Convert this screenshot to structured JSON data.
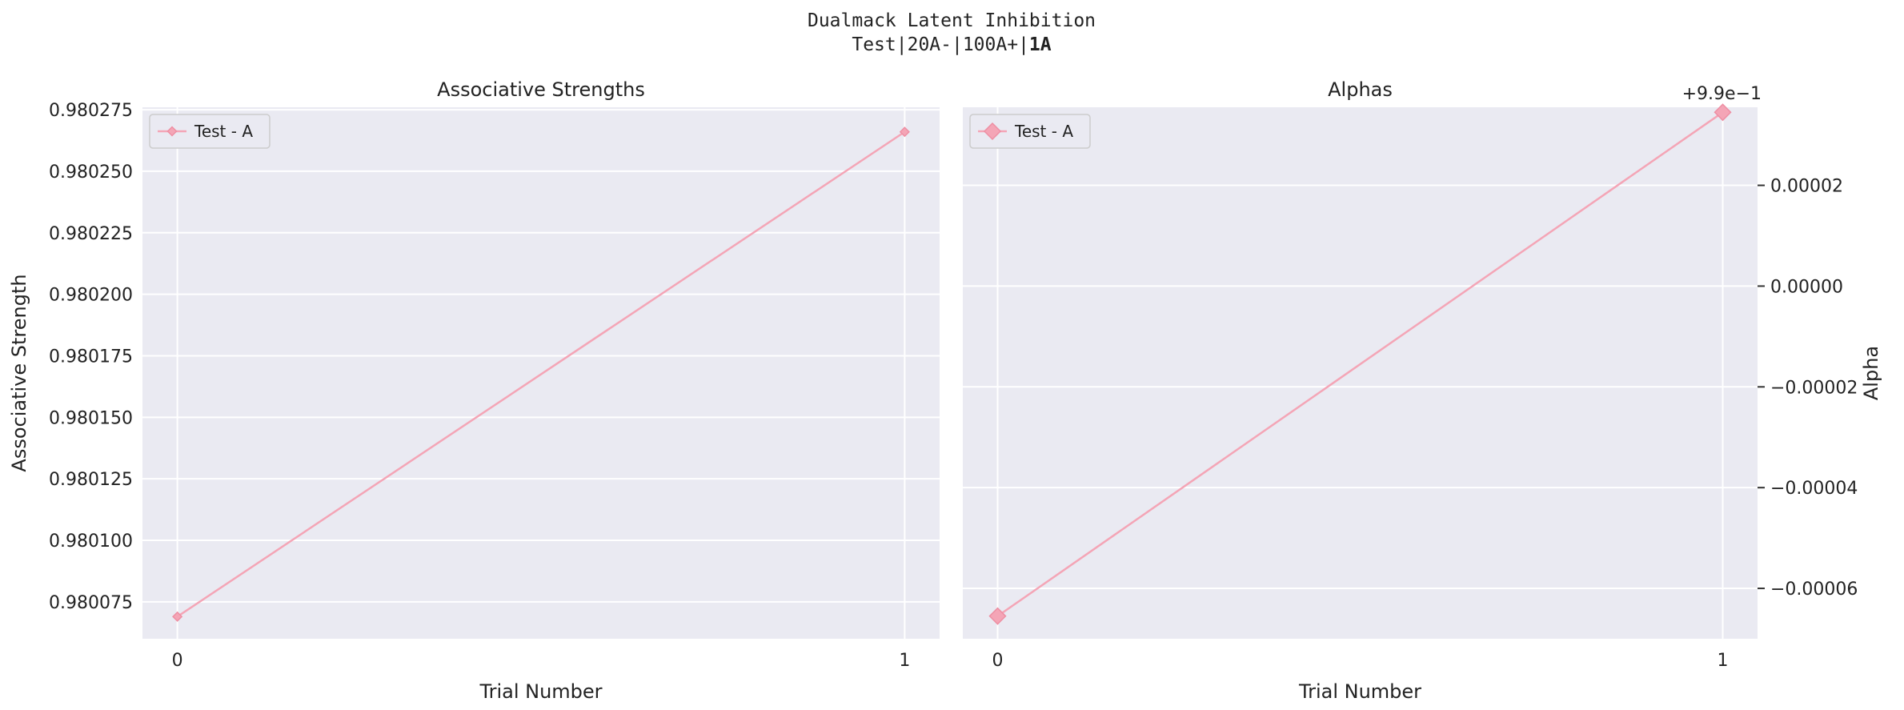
{
  "figure": {
    "title_line1": "Dualmack Latent Inhibition",
    "title_line2_prefix": "Test|20A-|100A+|",
    "title_line2_bold": "1A"
  },
  "chart_data": [
    {
      "type": "line",
      "title": "Associative Strengths",
      "xlabel": "Trial Number",
      "ylabel": "Associative Strength",
      "x": [
        0,
        1
      ],
      "xticks": [
        "0",
        "1"
      ],
      "xlim": [
        -0.048,
        1.048
      ],
      "ylim": [
        0.98006,
        0.980276
      ],
      "yticks": [
        0.980075,
        0.9801,
        0.980125,
        0.98015,
        0.980175,
        0.9802,
        0.980225,
        0.98025,
        0.980275
      ],
      "ytick_labels": [
        "0.980075",
        "0.980100",
        "0.980125",
        "0.980150",
        "0.980175",
        "0.980200",
        "0.980225",
        "0.980250",
        "0.980275"
      ],
      "series": [
        {
          "name": "Test - A",
          "values": [
            0.980069,
            0.980266
          ],
          "color": "#f4a5b6",
          "marker": "diamond",
          "marker_size": "small"
        }
      ],
      "legend": "top-left",
      "grid": true,
      "y_axis_side": "left"
    },
    {
      "type": "line",
      "title": "Alphas",
      "xlabel": "Trial Number",
      "ylabel": "Alpha",
      "x": [
        0,
        1
      ],
      "xticks": [
        "0",
        "1"
      ],
      "xlim": [
        -0.048,
        1.048
      ],
      "y_offset_label": "+9.9e−1",
      "ylim": [
        -7e-05,
        3.55e-05
      ],
      "yticks": [
        -6e-05,
        -4e-05,
        -2e-05,
        0.0,
        2e-05
      ],
      "ytick_labels": [
        "−0.00006",
        "−0.00004",
        "−0.00002",
        "0.00000",
        "0.00002"
      ],
      "series": [
        {
          "name": "Test - A",
          "values": [
            -6.55e-05,
            3.45e-05
          ],
          "color": "#f4a5b6",
          "marker": "diamond",
          "marker_size": "large"
        }
      ],
      "legend": "top-left",
      "grid": true,
      "y_axis_side": "right"
    }
  ]
}
